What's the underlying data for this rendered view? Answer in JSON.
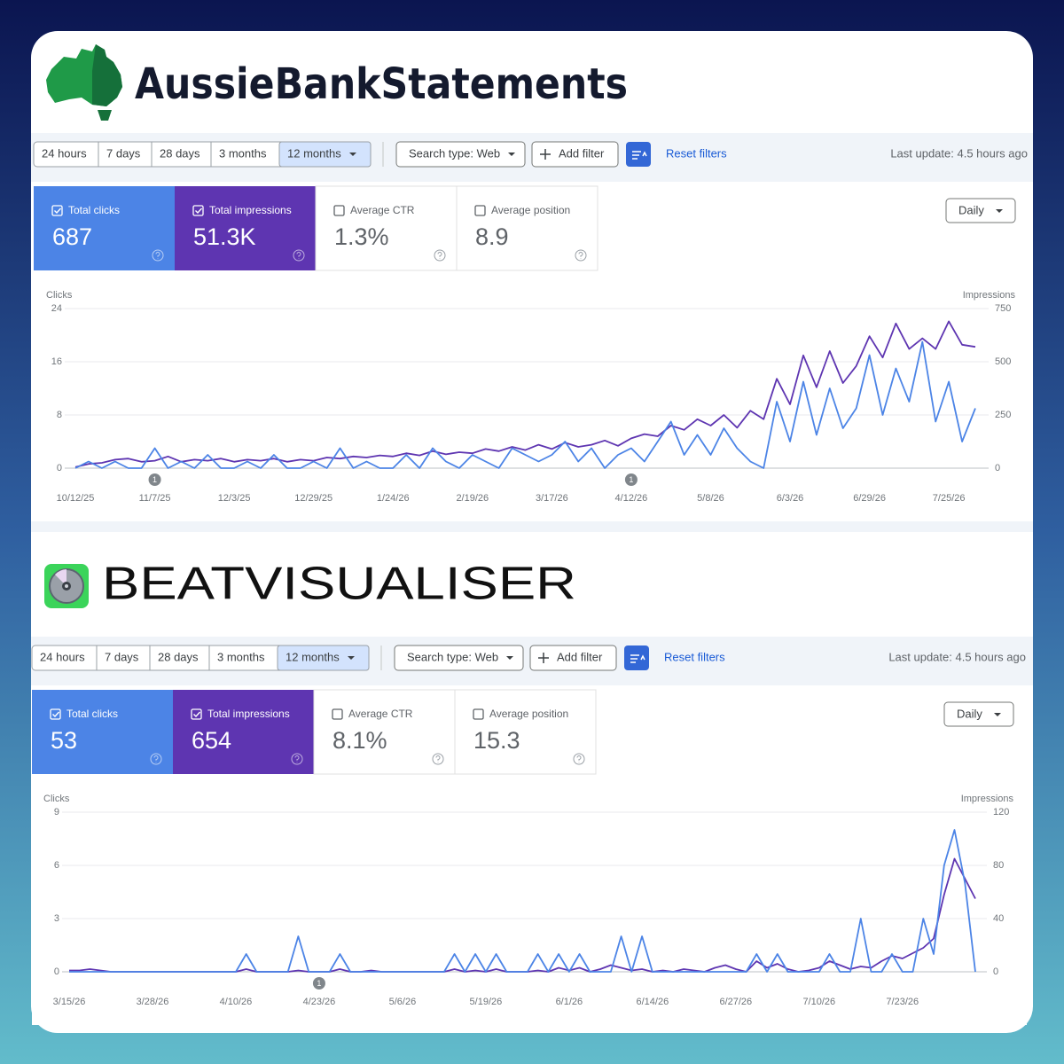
{
  "panels": [
    {
      "brand": "AussieBankStatements",
      "ranges": [
        {
          "label": "24 hours"
        },
        {
          "label": "7 days"
        },
        {
          "label": "28 days"
        },
        {
          "label": "3 months"
        },
        {
          "label": "12 months",
          "selected": true
        }
      ],
      "search_type": "Search type: Web",
      "add_filter": "Add filter",
      "reset": "Reset filters",
      "last_update": "Last update: 4.5 hours ago",
      "metrics": [
        {
          "label": "Total clicks",
          "value": "687",
          "checked": true
        },
        {
          "label": "Total impressions",
          "value": "51.3K",
          "checked": true
        },
        {
          "label": "Average CTR",
          "value": "1.3%",
          "checked": false
        },
        {
          "label": "Average position",
          "value": "8.9",
          "checked": false
        }
      ],
      "granularity": "Daily",
      "chart_data": {
        "type": "line",
        "y_label": "Clicks",
        "y2_label": "Impressions",
        "grid": true,
        "categories": [
          "10/12/25",
          null,
          null,
          null,
          null,
          null,
          "11/7/25",
          null,
          null,
          null,
          null,
          null,
          "12/3/25",
          null,
          null,
          null,
          null,
          null,
          "12/29/25",
          null,
          null,
          null,
          null,
          null,
          "1/24/26",
          null,
          null,
          null,
          null,
          null,
          "2/19/26",
          null,
          null,
          null,
          null,
          null,
          "3/17/26",
          null,
          null,
          null,
          null,
          null,
          "4/12/26",
          null,
          null,
          null,
          null,
          null,
          "5/8/26",
          null,
          null,
          null,
          null,
          null,
          "6/3/26",
          null,
          null,
          null,
          null,
          null,
          "6/29/26",
          null,
          null,
          null,
          null,
          null,
          "7/25/26",
          null,
          null
        ],
        "ylim": [
          0,
          24
        ],
        "yticks": [
          0,
          8,
          16,
          24
        ],
        "y2lim": [
          0,
          750
        ],
        "y2ticks": [
          0,
          250,
          500,
          750
        ],
        "series": [
          {
            "color": "#4c84e6",
            "values": [
              0,
              1,
              0,
              1,
              0,
              0,
              3,
              0,
              1,
              0,
              2,
              0,
              0,
              1,
              0,
              2,
              0,
              0,
              1,
              0,
              3,
              0,
              1,
              0,
              0,
              2,
              0,
              3,
              1,
              0,
              2,
              1,
              0,
              3,
              2,
              1,
              2,
              4,
              1,
              3,
              0,
              2,
              3,
              1,
              4,
              7,
              2,
              5,
              2,
              6,
              3,
              1,
              0,
              10,
              4,
              13,
              5,
              12,
              6,
              9,
              17,
              8,
              15,
              10,
              19,
              7,
              13,
              4,
              9
            ]
          },
          {
            "color": "#5e35b1",
            "axis": "y2",
            "values": [
              5,
              20,
              25,
              40,
              45,
              30,
              35,
              55,
              30,
              40,
              35,
              45,
              30,
              40,
              35,
              45,
              30,
              40,
              35,
              50,
              45,
              55,
              50,
              60,
              55,
              70,
              60,
              80,
              65,
              75,
              70,
              90,
              80,
              100,
              85,
              110,
              90,
              120,
              100,
              110,
              130,
              105,
              140,
              160,
              150,
              200,
              180,
              230,
              200,
              250,
              190,
              270,
              230,
              420,
              300,
              530,
              380,
              550,
              400,
              480,
              620,
              520,
              680,
              560,
              610,
              560,
              690,
              580,
              570
            ]
          }
        ],
        "annotations": [
          {
            "x": "11/7/25",
            "text": "1"
          },
          {
            "x": "4/12/26",
            "text": "1"
          }
        ]
      }
    },
    {
      "brand": "BEATVISUALISER",
      "ranges": [
        {
          "label": "24 hours"
        },
        {
          "label": "7 days"
        },
        {
          "label": "28 days"
        },
        {
          "label": "3 months"
        },
        {
          "label": "12 months",
          "selected": true
        }
      ],
      "search_type": "Search type: Web",
      "add_filter": "Add filter",
      "reset": "Reset filters",
      "last_update": "Last update: 4.5 hours ago",
      "metrics": [
        {
          "label": "Total clicks",
          "value": "53",
          "checked": true
        },
        {
          "label": "Total impressions",
          "value": "654",
          "checked": true
        },
        {
          "label": "Average CTR",
          "value": "8.1%",
          "checked": false
        },
        {
          "label": "Average position",
          "value": "15.3",
          "checked": false
        }
      ],
      "granularity": "Daily",
      "chart_data": {
        "type": "line",
        "y_label": "Clicks",
        "y2_label": "Impressions",
        "grid": true,
        "categories": [
          "3/15/26",
          null,
          null,
          null,
          null,
          null,
          null,
          null,
          "3/28/26",
          null,
          null,
          null,
          null,
          null,
          null,
          null,
          "4/10/26",
          null,
          null,
          null,
          null,
          null,
          null,
          null,
          "4/23/26",
          null,
          null,
          null,
          null,
          null,
          null,
          null,
          "5/6/26",
          null,
          null,
          null,
          null,
          null,
          null,
          null,
          "5/19/26",
          null,
          null,
          null,
          null,
          null,
          null,
          null,
          "6/1/26",
          null,
          null,
          null,
          null,
          null,
          null,
          null,
          "6/14/26",
          null,
          null,
          null,
          null,
          null,
          null,
          null,
          "6/27/26",
          null,
          null,
          null,
          null,
          null,
          null,
          null,
          "7/10/26",
          null,
          null,
          null,
          null,
          null,
          null,
          null,
          "7/23/26",
          null,
          null,
          null,
          null,
          null,
          null,
          null
        ],
        "ylim": [
          0,
          9
        ],
        "yticks": [
          0,
          3,
          6,
          9
        ],
        "y2lim": [
          0,
          120
        ],
        "y2ticks": [
          0,
          40,
          80,
          120
        ],
        "series": [
          {
            "color": "#4c84e6",
            "values": [
              0,
              0,
              0,
              0,
              0,
              0,
              0,
              0,
              0,
              0,
              0,
              0,
              0,
              0,
              0,
              0,
              0,
              1,
              0,
              0,
              0,
              0,
              2,
              0,
              0,
              0,
              1,
              0,
              0,
              0,
              0,
              0,
              0,
              0,
              0,
              0,
              0,
              1,
              0,
              1,
              0,
              1,
              0,
              0,
              0,
              1,
              0,
              1,
              0,
              1,
              0,
              0,
              0,
              2,
              0,
              2,
              0,
              0,
              0,
              0,
              0,
              0,
              0,
              0,
              0,
              0,
              1,
              0,
              1,
              0,
              0,
              0,
              0,
              1,
              0,
              0,
              3,
              0,
              0,
              1,
              0,
              0,
              3,
              1,
              6,
              8,
              5,
              0
            ]
          },
          {
            "color": "#5e35b1",
            "axis": "y2",
            "values": [
              1,
              1,
              2,
              1,
              0,
              0,
              0,
              0,
              0,
              0,
              0,
              0,
              0,
              0,
              0,
              0,
              0,
              2,
              0,
              0,
              0,
              0,
              1,
              0,
              0,
              0,
              2,
              0,
              0,
              1,
              0,
              0,
              0,
              0,
              0,
              0,
              0,
              2,
              0,
              1,
              0,
              2,
              0,
              0,
              0,
              1,
              0,
              3,
              1,
              3,
              0,
              2,
              5,
              3,
              1,
              2,
              0,
              1,
              0,
              2,
              1,
              0,
              3,
              5,
              2,
              0,
              8,
              3,
              6,
              2,
              0,
              1,
              3,
              8,
              5,
              2,
              4,
              3,
              8,
              12,
              10,
              14,
              18,
              25,
              58,
              85,
              70,
              55
            ]
          }
        ],
        "annotations": [
          {
            "x": "4/23/26",
            "text": "1"
          }
        ]
      }
    }
  ]
}
